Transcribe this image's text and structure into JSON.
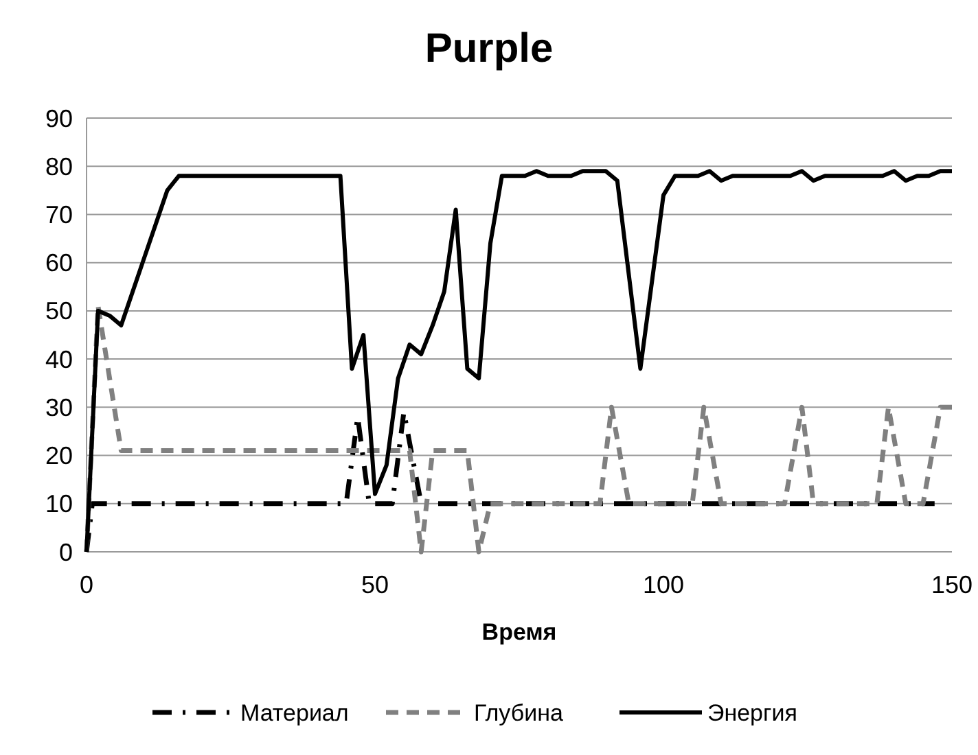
{
  "chart_data": {
    "type": "line",
    "title": "Purple",
    "xlabel": "Время",
    "xlim": [
      0,
      150
    ],
    "xticks": [
      0,
      50,
      100,
      150
    ],
    "ylim": [
      0,
      90
    ],
    "yticks": [
      0,
      10,
      20,
      30,
      40,
      50,
      60,
      70,
      80,
      90
    ],
    "grid": "y",
    "legend": "bottom",
    "series": [
      {
        "name": "Материал",
        "color": "#000000",
        "line_style": "dashdot",
        "x": [
          0,
          1,
          45,
          47,
          49,
          53,
          55,
          58,
          147
        ],
        "values": [
          0,
          10,
          10,
          28,
          10,
          10,
          29,
          10,
          10
        ]
      },
      {
        "name": "Глубина",
        "color": "#808080",
        "line_style": "dashed",
        "x": [
          0,
          2,
          6,
          56,
          58,
          60,
          66,
          68,
          70,
          89,
          91,
          94,
          105,
          107,
          110,
          121,
          124,
          126,
          137,
          139,
          142,
          145,
          148,
          150
        ],
        "values": [
          0,
          51,
          21,
          21,
          0,
          21,
          21,
          0,
          10,
          10,
          30,
          10,
          10,
          30,
          10,
          10,
          30,
          10,
          10,
          30,
          10,
          10,
          30,
          30
        ]
      },
      {
        "name": "Энергия",
        "color": "#000000",
        "line_style": "solid",
        "x": [
          0,
          2,
          4,
          6,
          10,
          14,
          16,
          44,
          46,
          48,
          50,
          52,
          54,
          56,
          58,
          60,
          62,
          64,
          66,
          68,
          70,
          72,
          76,
          78,
          80,
          84,
          86,
          90,
          92,
          96,
          100,
          102,
          106,
          108,
          110,
          112,
          122,
          124,
          126,
          128,
          138,
          140,
          142,
          144,
          146,
          148,
          150
        ],
        "values": [
          0,
          50,
          49,
          47,
          61,
          75,
          78,
          78,
          38,
          45,
          12,
          18,
          36,
          43,
          41,
          47,
          54,
          71,
          38,
          36,
          64,
          78,
          78,
          79,
          78,
          78,
          79,
          79,
          77,
          38,
          74,
          78,
          78,
          79,
          77,
          78,
          78,
          79,
          77,
          78,
          78,
          79,
          77,
          78,
          78,
          79,
          79
        ]
      }
    ]
  }
}
